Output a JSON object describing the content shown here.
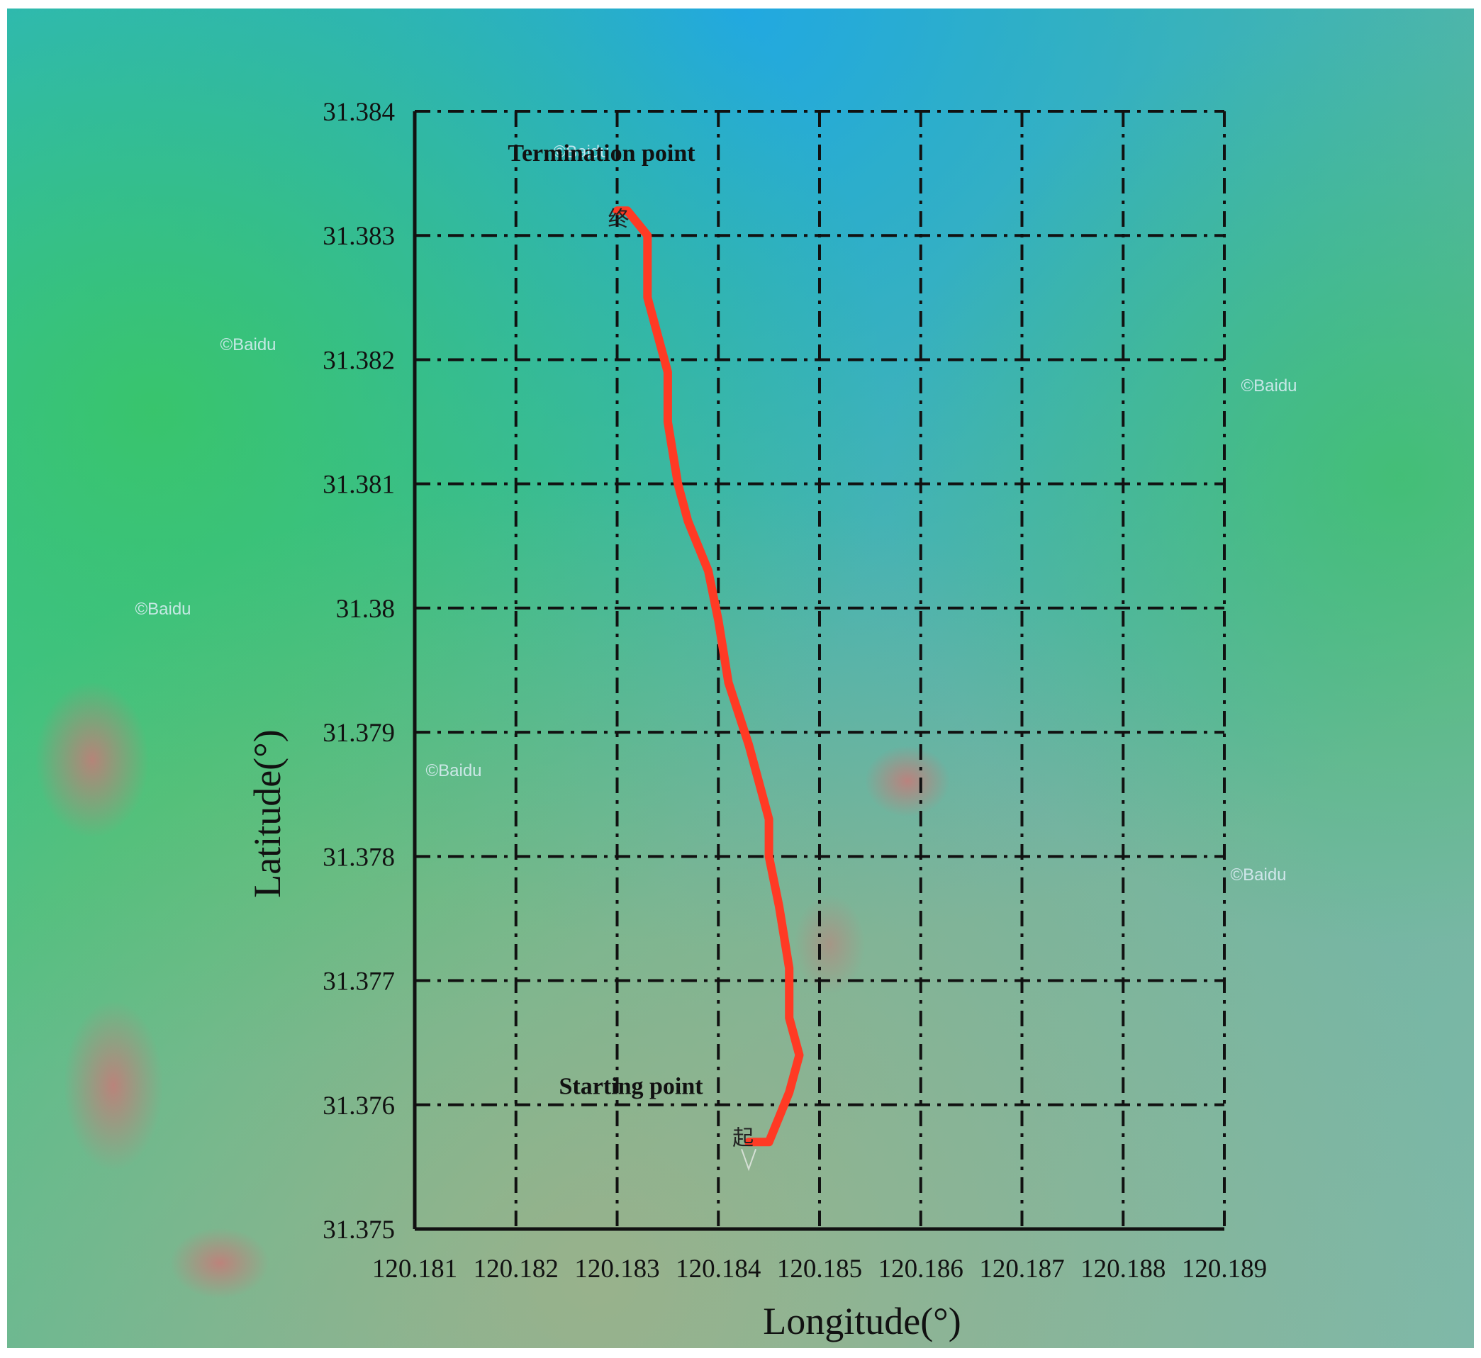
{
  "chart_data": {
    "type": "line",
    "title": "",
    "xlabel": "Longitude(°)",
    "ylabel": "Latitude(°)",
    "xlim": [
      120.181,
      120.189
    ],
    "ylim": [
      31.375,
      31.384
    ],
    "x_ticks": [
      "120.181",
      "120.182",
      "120.183",
      "120.184",
      "120.185",
      "120.186",
      "120.187",
      "120.188",
      "120.189"
    ],
    "y_ticks": [
      "31.375",
      "31.376",
      "31.377",
      "31.378",
      "31.379",
      "31.38",
      "31.381",
      "31.382",
      "31.383",
      "31.384"
    ],
    "grid": true,
    "grid_style": "dash-dot",
    "series": [
      {
        "color": "#ff3a24",
        "points": [
          [
            120.1843,
            31.3757
          ],
          [
            120.1845,
            31.3757
          ],
          [
            120.1846,
            31.3759
          ],
          [
            120.1847,
            31.3761
          ],
          [
            120.1848,
            31.3764
          ],
          [
            120.1847,
            31.3767
          ],
          [
            120.1847,
            31.3771
          ],
          [
            120.1846,
            31.3776
          ],
          [
            120.1845,
            31.378
          ],
          [
            120.1845,
            31.3783
          ],
          [
            120.1844,
            31.3786
          ],
          [
            120.1843,
            31.3789
          ],
          [
            120.1841,
            31.3794
          ],
          [
            120.184,
            31.3799
          ],
          [
            120.1839,
            31.3803
          ],
          [
            120.1837,
            31.3807
          ],
          [
            120.1836,
            31.381
          ],
          [
            120.1835,
            31.3815
          ],
          [
            120.1835,
            31.3819
          ],
          [
            120.1834,
            31.3822
          ],
          [
            120.1833,
            31.3825
          ],
          [
            120.1833,
            31.3828
          ],
          [
            120.1833,
            31.383
          ],
          [
            120.1832,
            31.3831
          ],
          [
            120.1831,
            31.3832
          ],
          [
            120.183,
            31.3832
          ]
        ]
      }
    ],
    "annotations": [
      {
        "text": "Termination point",
        "x": 120.183,
        "y": 31.3832
      },
      {
        "text": "Starting point",
        "x": 120.1843,
        "y": 31.3757
      }
    ],
    "background": "satellite imagery"
  },
  "markers": {
    "end_glyph": "终",
    "start_glyph": "起"
  },
  "watermarks": [
    "©Baidu",
    "©Baidu",
    "©Baidu",
    "©Baidu",
    "©Baidu",
    "©Baidu"
  ]
}
